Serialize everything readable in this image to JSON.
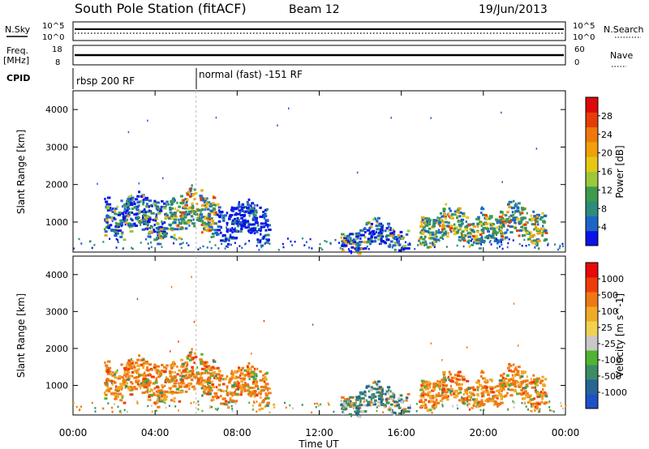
{
  "header": {
    "station": "South Pole Station (fitACF)",
    "beam": "Beam 12",
    "date": "19/Jun/2013"
  },
  "strips": {
    "nsky_label": "N.Sky",
    "nsky_ticks": [
      "10^5",
      "10^0"
    ],
    "nsearch_label": "N.Search",
    "nsearch_ticks": [
      "10^5",
      "10^0"
    ],
    "freq_label": "Freq.",
    "freq_unit": "[MHz]",
    "freq_ticks": [
      "18",
      "8"
    ],
    "nave_label": "Nave",
    "nave_ticks": [
      "60",
      "0"
    ],
    "cpid_label": "CPID",
    "cpid_segments": [
      {
        "label": "rbsp 200 RF",
        "start_hour": 0
      },
      {
        "label": "normal (fast) -151 RF",
        "start_hour": 6
      }
    ]
  },
  "chart_data": [
    {
      "type": "heatmap",
      "name": "power",
      "ylabel": "Slant Range [km]",
      "yticks": [
        "4000",
        "3000",
        "2000",
        "1000"
      ],
      "ylim": [
        200,
        4500
      ],
      "xlim": [
        0,
        24
      ],
      "colorbar": {
        "label": "Power [dB]",
        "ticks": [
          "28",
          "24",
          "20",
          "16",
          "12",
          "8",
          "4"
        ],
        "colors": [
          "#0a14e6",
          "#1e64c8",
          "#2d8c7a",
          "#3c9c4c",
          "#9cc83c",
          "#e6c814",
          "#f0a00a",
          "#f0780a",
          "#e63c0a",
          "#dc0a0a"
        ]
      },
      "echo_regions": [
        {
          "t0": 1.5,
          "t1": 4.5,
          "r0": 600,
          "r1": 1800,
          "level": "medium"
        },
        {
          "t0": 4.5,
          "t1": 7.0,
          "r0": 700,
          "r1": 1900,
          "level": "high"
        },
        {
          "t0": 7.0,
          "t1": 9.5,
          "r0": 500,
          "r1": 1600,
          "level": "low"
        },
        {
          "t0": 13.0,
          "t1": 16.3,
          "r0": 300,
          "r1": 1000,
          "level": "medium"
        },
        {
          "t0": 16.8,
          "t1": 19.8,
          "r0": 450,
          "r1": 1400,
          "level": "high"
        },
        {
          "t0": 19.8,
          "t1": 23.0,
          "r0": 450,
          "r1": 1500,
          "level": "high"
        }
      ]
    },
    {
      "type": "heatmap",
      "name": "velocity",
      "ylabel": "Slant Range [km]",
      "yticks": [
        "4000",
        "3000",
        "2000",
        "1000"
      ],
      "ylim": [
        200,
        4500
      ],
      "xlim": [
        0,
        24
      ],
      "colorbar": {
        "label": "Velocity [m s^-1]",
        "ticks": [
          "1000",
          "500",
          "100",
          "25",
          "-25",
          "-100",
          "-500",
          "-1000"
        ],
        "colors": [
          "#1e50c8",
          "#286496",
          "#3c8c64",
          "#50b432",
          "#c8c8c8",
          "#f0d250",
          "#f0aa28",
          "#f07814",
          "#f03c0a",
          "#e60a0a"
        ]
      },
      "echo_regions": [
        {
          "t0": 1.5,
          "t1": 4.5,
          "r0": 600,
          "r1": 1800,
          "level": "negative"
        },
        {
          "t0": 4.5,
          "t1": 7.0,
          "r0": 700,
          "r1": 1900,
          "level": "negative"
        },
        {
          "t0": 7.0,
          "t1": 9.5,
          "r0": 500,
          "r1": 1600,
          "level": "negative"
        },
        {
          "t0": 13.0,
          "t1": 16.3,
          "r0": 300,
          "r1": 1000,
          "level": "positive"
        },
        {
          "t0": 16.8,
          "t1": 19.8,
          "r0": 450,
          "r1": 1400,
          "level": "negative"
        },
        {
          "t0": 19.8,
          "t1": 23.0,
          "r0": 450,
          "r1": 1500,
          "level": "negative"
        }
      ]
    }
  ],
  "xaxis": {
    "label": "Time UT",
    "ticks": [
      "00:00",
      "04:00",
      "08:00",
      "12:00",
      "16:00",
      "20:00",
      "00:00"
    ]
  }
}
